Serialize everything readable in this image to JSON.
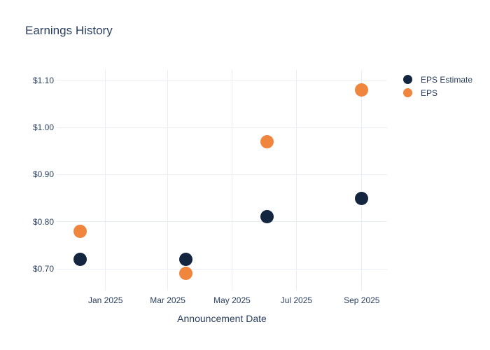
{
  "title": "Earnings History",
  "colors": {
    "eps_estimate": "#14253f",
    "eps": "#f0853e",
    "grid": "#e9eef6",
    "text": "#2a3f5f",
    "background": "#ffffff"
  },
  "legend": {
    "items": [
      {
        "label": "EPS Estimate",
        "color": "#14253f"
      },
      {
        "label": "EPS",
        "color": "#f0853e"
      }
    ]
  },
  "chart_data": {
    "type": "scatter",
    "title": "Earnings History",
    "xlabel": "Announcement Date",
    "ylabel": "",
    "grid": true,
    "legend_position": "right",
    "x_ticks": [
      {
        "date": "2025-01-01",
        "label": "Jan 2025"
      },
      {
        "date": "2025-03-01",
        "label": "Mar 2025"
      },
      {
        "date": "2025-05-01",
        "label": "May 2025"
      },
      {
        "date": "2025-07-01",
        "label": "Jul 2025"
      },
      {
        "date": "2025-09-01",
        "label": "Sep 2025"
      }
    ],
    "y_ticks": [
      {
        "value": 0.7,
        "label": "$0.70"
      },
      {
        "value": 0.8,
        "label": "$0.80"
      },
      {
        "value": 0.9,
        "label": "$0.90"
      },
      {
        "value": 1.0,
        "label": "$1.00"
      },
      {
        "value": 1.1,
        "label": "$1.10"
      }
    ],
    "x_range": [
      "2024-11-15",
      "2025-09-25"
    ],
    "y_range": [
      0.654,
      1.122
    ],
    "series": [
      {
        "name": "EPS Estimate",
        "color": "#14253f",
        "points": [
          {
            "date": "2024-12-08",
            "value": 0.72
          },
          {
            "date": "2025-03-18",
            "value": 0.72
          },
          {
            "date": "2025-06-03",
            "value": 0.81
          },
          {
            "date": "2025-09-01",
            "value": 0.85
          }
        ]
      },
      {
        "name": "EPS",
        "color": "#f0853e",
        "points": [
          {
            "date": "2024-12-08",
            "value": 0.78
          },
          {
            "date": "2025-03-18",
            "value": 0.69
          },
          {
            "date": "2025-06-03",
            "value": 0.97
          },
          {
            "date": "2025-09-01",
            "value": 1.08
          }
        ]
      }
    ]
  }
}
